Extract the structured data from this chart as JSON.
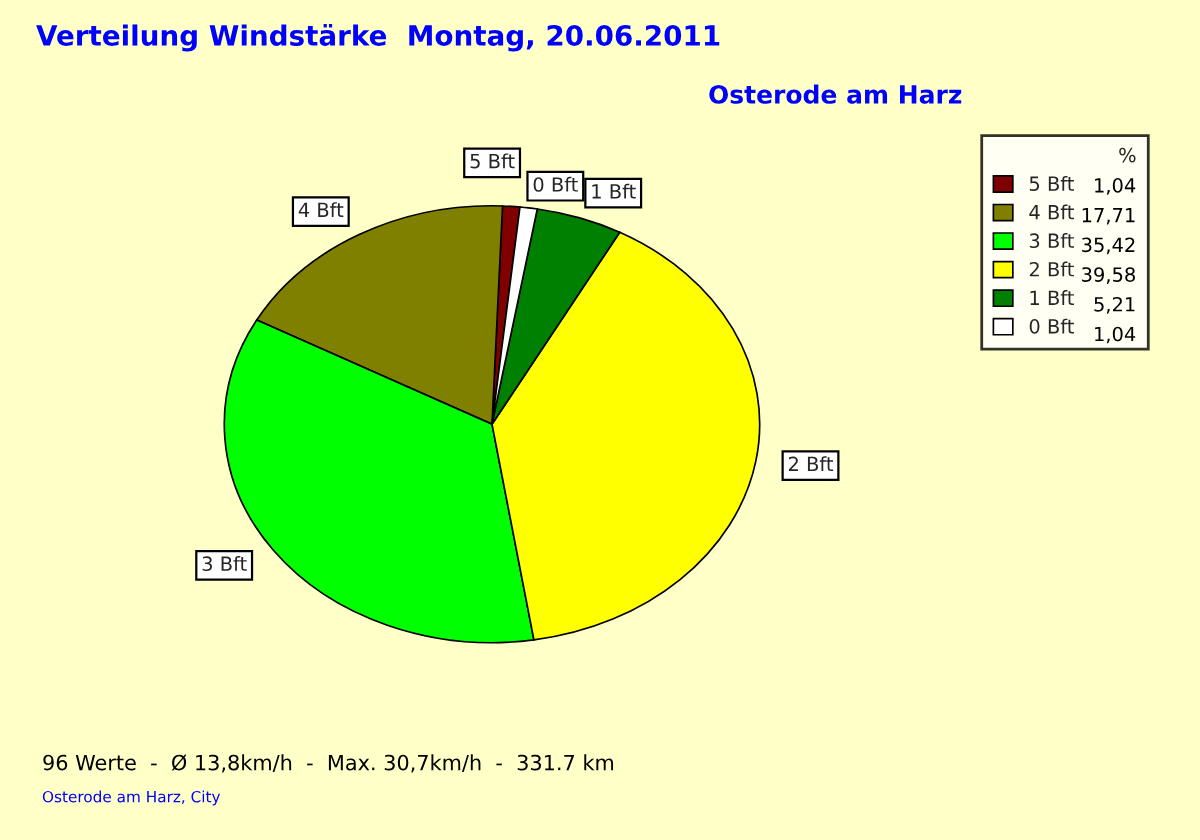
{
  "chart_data": {
    "type": "pie",
    "title": "Verteilung Windstärke  Montag, 20.06.2011",
    "subtitle": "Osterode am Harz",
    "categories": [
      "5 Bft",
      "4 Bft",
      "3 Bft",
      "2 Bft",
      "1 Bft",
      "0 Bft"
    ],
    "values": [
      1.04,
      17.71,
      35.42,
      39.58,
      5.21,
      1.04
    ],
    "value_labels": [
      "1,04",
      "17,71",
      "35,42",
      "39,58",
      "5,21",
      "1,04"
    ],
    "colors": [
      "#800000",
      "#808000",
      "#00ff00",
      "#ffff00",
      "#008000",
      "#ffffff"
    ],
    "legend": "right",
    "legend_title": "%",
    "annotations": [
      "96 Werte  -  Ø 13,8km/h  -  Max. 30,7km/h  -  331.7 km",
      "Osterode am Harz, City"
    ]
  }
}
